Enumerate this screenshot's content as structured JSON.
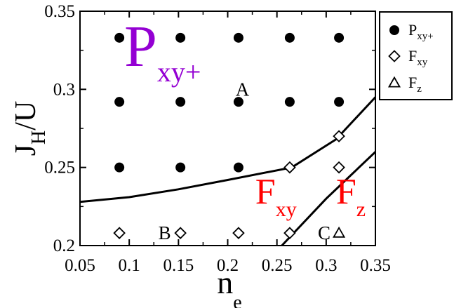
{
  "chart_data": {
    "type": "scatter",
    "xlim": [
      0.05,
      0.35
    ],
    "ylim": [
      0.2,
      0.35
    ],
    "x_ticks": [
      0.05,
      0.1,
      0.15,
      0.2,
      0.25,
      0.3,
      0.35
    ],
    "x_tick_labels": [
      "0.05",
      "0.1",
      "0.15",
      "0.2",
      "0.25",
      "0.3",
      "0.35"
    ],
    "y_ticks": [
      0.2,
      0.25,
      0.3,
      0.35
    ],
    "y_tick_labels": [
      "0.2",
      "0.25",
      "0.3",
      "0.35"
    ],
    "xlabel": {
      "main": "n",
      "sub": "e"
    },
    "ylabel": {
      "main": "J",
      "sub": "H",
      "rest": "/U"
    },
    "grid": false,
    "legend_position": "outside-top-right",
    "series": [
      {
        "name": {
          "main": "P",
          "sub": "xy+"
        },
        "marker": "filled-circle",
        "points": [
          [
            0.09,
            0.333
          ],
          [
            0.152,
            0.333
          ],
          [
            0.211,
            0.333
          ],
          [
            0.263,
            0.333
          ],
          [
            0.313,
            0.333
          ],
          [
            0.09,
            0.292
          ],
          [
            0.152,
            0.292
          ],
          [
            0.211,
            0.292
          ],
          [
            0.263,
            0.292
          ],
          [
            0.313,
            0.292
          ],
          [
            0.09,
            0.25
          ],
          [
            0.152,
            0.25
          ],
          [
            0.211,
            0.25
          ]
        ]
      },
      {
        "name": {
          "main": "F",
          "sub": "xy"
        },
        "marker": "open-diamond",
        "points": [
          [
            0.09,
            0.208
          ],
          [
            0.152,
            0.208
          ],
          [
            0.211,
            0.208
          ],
          [
            0.263,
            0.208
          ],
          [
            0.263,
            0.25
          ],
          [
            0.313,
            0.25
          ],
          [
            0.313,
            0.27
          ]
        ]
      },
      {
        "name": {
          "main": "F",
          "sub": "z"
        },
        "marker": "open-triangle",
        "points": [
          [
            0.313,
            0.208
          ]
        ]
      }
    ],
    "boundaries": [
      {
        "points": [
          [
            0.05,
            0.228
          ],
          [
            0.1,
            0.231
          ],
          [
            0.15,
            0.236
          ],
          [
            0.2,
            0.242
          ],
          [
            0.265,
            0.25
          ],
          [
            0.31,
            0.268
          ],
          [
            0.35,
            0.295
          ]
        ]
      },
      {
        "points": [
          [
            0.255,
            0.2
          ],
          [
            0.3,
            0.23
          ],
          [
            0.35,
            0.26
          ]
        ]
      }
    ],
    "annotations": [
      {
        "text": "A",
        "x": 0.215,
        "y": 0.3
      },
      {
        "text": "B",
        "x": 0.136,
        "y": 0.208
      },
      {
        "text": "C",
        "x": 0.298,
        "y": 0.208
      }
    ],
    "phase_labels": [
      {
        "main": "P",
        "sub": "xy+",
        "color": "#9400d3",
        "x": 0.095,
        "y": 0.315,
        "size": "large"
      },
      {
        "main": "F",
        "sub": "xy",
        "color": "#ff0000",
        "x": 0.228,
        "y": 0.227,
        "size": "medium"
      },
      {
        "main": "F",
        "sub": "z",
        "color": "#ff0000",
        "x": 0.31,
        "y": 0.227,
        "size": "medium"
      }
    ]
  }
}
